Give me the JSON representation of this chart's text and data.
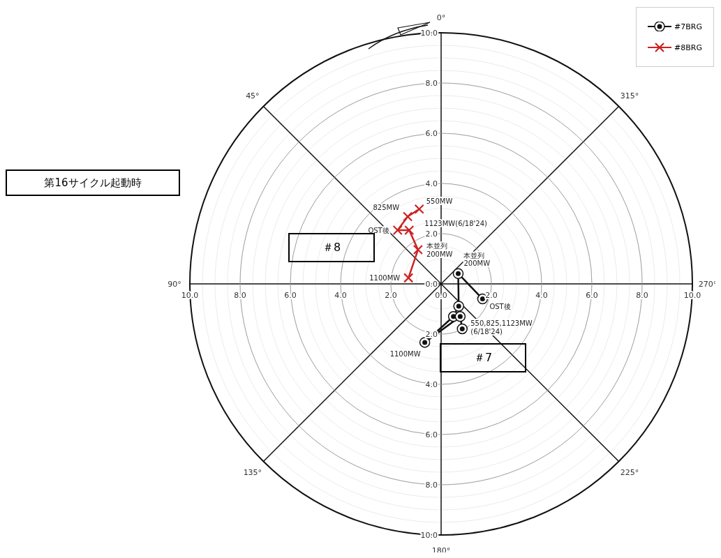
{
  "chart_data": {
    "type": "line",
    "series": [
      {
        "name": "#7BRG",
        "color": "#111111",
        "marker": "circle",
        "x": [
          1.65,
          0.68,
          0.7,
          0.49,
          -0.65,
          0.76,
          0.84
        ],
        "values": [
          -0.6,
          0.41,
          -0.89,
          -1.3,
          -2.33,
          -1.3,
          -1.79
        ]
      },
      {
        "name": "#8BRG",
        "color": "#cc2222",
        "marker": "cross",
        "x": [
          -1.3,
          -0.92,
          -1.27,
          -1.73,
          -1.33,
          -0.87
        ],
        "values": [
          0.24,
          1.36,
          2.14,
          2.14,
          2.68,
          2.98
        ]
      }
    ],
    "xlim": [
      -10,
      10
    ],
    "ylim": [
      -10,
      10
    ],
    "xticks": [
      {
        "value": -10,
        "label": "10.0"
      },
      {
        "value": -8,
        "label": "8.0"
      },
      {
        "value": -6,
        "label": "6.0"
      },
      {
        "value": -4,
        "label": "4.0"
      },
      {
        "value": -2,
        "label": "2.0"
      },
      {
        "value": 0,
        "label": "0.0"
      },
      {
        "value": 2,
        "label": "2.0"
      },
      {
        "value": 4,
        "label": "4.0"
      },
      {
        "value": 6,
        "label": "6.0"
      },
      {
        "value": 8,
        "label": "8.0"
      },
      {
        "value": 10,
        "label": "10.0"
      }
    ],
    "yticks": [
      {
        "value": -10,
        "label": "10.0"
      },
      {
        "value": -8,
        "label": "8.0"
      },
      {
        "value": -6,
        "label": "6.0"
      },
      {
        "value": -4,
        "label": "4.0"
      },
      {
        "value": -2,
        "label": "2.0"
      },
      {
        "value": 0,
        "label": "0.0"
      },
      {
        "value": 2,
        "label": "2.0"
      },
      {
        "value": 4,
        "label": "4.0"
      },
      {
        "value": 6,
        "label": "6.0"
      },
      {
        "value": 8,
        "label": "8.0"
      },
      {
        "value": 10,
        "label": "10.0"
      }
    ],
    "legend": "top right",
    "annotations": [
      "第16サイクル起動時",
      "0°",
      "45°",
      "90°",
      "135°",
      "180°",
      "225°",
      "270°",
      "315°",
      "＃8",
      "＃7",
      {
        "text": "550MW",
        "x": -0.87,
        "y": 2.98
      },
      {
        "text": "825MW",
        "x": -1.33,
        "y": 2.68
      },
      {
        "text": "OST後",
        "x": -1.73,
        "y": 2.14
      },
      {
        "text": "1123MW(6/18'24)",
        "x": -1.27,
        "y": 2.14
      },
      {
        "text": "本並列",
        "x": -0.92,
        "y": 1.36
      },
      {
        "text": "200MW",
        "x": -0.92,
        "y": 1.36
      },
      {
        "text": "1100MW",
        "x": -1.3,
        "y": 0.24
      },
      {
        "text": "本並列",
        "x": 0.68,
        "y": 0.41
      },
      {
        "text": "200MW",
        "x": 0.68,
        "y": 0.41
      },
      {
        "text": "OST後",
        "x": 1.65,
        "y": -0.6
      },
      {
        "text": "550,825,1123MW",
        "x": 0.84,
        "y": -1.79
      },
      {
        "text": "(6/18'24)",
        "x": 0.84,
        "y": -1.79
      },
      {
        "text": "1100MW",
        "x": -0.65,
        "y": -2.33
      }
    ]
  }
}
